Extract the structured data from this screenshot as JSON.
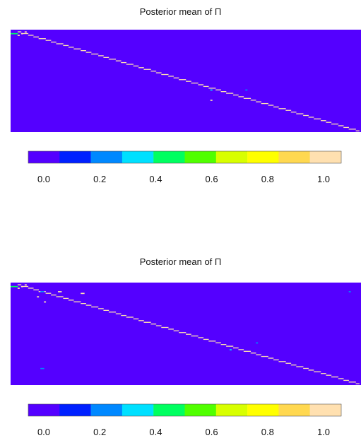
{
  "chart_data": [
    {
      "type": "heatmap",
      "title": "Posterior mean of Π",
      "colorbar": {
        "ticks": [
          "0.0",
          "0.2",
          "0.4",
          "0.6",
          "0.8",
          "1.0"
        ],
        "range": [
          0,
          1
        ],
        "colors": [
          "#5400FF",
          "#0020FF",
          "#0088FF",
          "#00E0FF",
          "#00FF60",
          "#50FF00",
          "#D8FF00",
          "#FFFF00",
          "#FFD850",
          "#FFE0B0"
        ]
      },
      "matrix": {
        "rows": 60,
        "cols": 200,
        "background_value": 0.0,
        "diagonal": {
          "from": [
            1,
            4
          ],
          "to": [
            59,
            198
          ],
          "value": 1.0
        },
        "cells": [
          {
            "row": 2,
            "col": 0,
            "value": 0.45
          },
          {
            "row": 2,
            "col": 1,
            "value": 0.45
          },
          {
            "row": 2,
            "col": 2,
            "value": 0.45
          },
          {
            "row": 2,
            "col": 3,
            "value": 0.45
          },
          {
            "row": 1,
            "col": 8,
            "value": 1.0
          },
          {
            "row": 2,
            "col": 6,
            "value": 1.0
          },
          {
            "row": 3,
            "col": 4,
            "value": 1.0
          },
          {
            "row": 35,
            "col": 114,
            "value": 0.35
          },
          {
            "row": 35,
            "col": 134,
            "value": 0.25
          },
          {
            "row": 41,
            "col": 114,
            "value": 0.95
          },
          {
            "row": 30,
            "col": 65,
            "value": 0.1
          },
          {
            "row": 47,
            "col": 94,
            "value": 0.1
          },
          {
            "row": 57,
            "col": 113,
            "value": 0.1
          },
          {
            "row": 54,
            "col": 174,
            "value": 0.1
          },
          {
            "row": 48,
            "col": 5,
            "value": 0.1
          },
          {
            "row": 19,
            "col": 129,
            "value": 0.1
          }
        ]
      }
    },
    {
      "type": "heatmap",
      "title": "Posterior mean of Π",
      "colorbar": {
        "ticks": [
          "0.0",
          "0.2",
          "0.4",
          "0.6",
          "0.8",
          "1.0"
        ],
        "range": [
          0,
          1
        ],
        "colors": [
          "#5400FF",
          "#0020FF",
          "#0088FF",
          "#00E0FF",
          "#00FF60",
          "#50FF00",
          "#D8FF00",
          "#FFFF00",
          "#FFD850",
          "#FFE0B0"
        ]
      },
      "matrix": {
        "rows": 60,
        "cols": 200,
        "background_value": 0.0,
        "diagonal": {
          "from": [
            1,
            4
          ],
          "to": [
            59,
            198
          ],
          "value": 1.0
        },
        "cells": [
          {
            "row": 2,
            "col": 0,
            "value": 0.45
          },
          {
            "row": 2,
            "col": 1,
            "value": 0.45
          },
          {
            "row": 2,
            "col": 2,
            "value": 0.45
          },
          {
            "row": 2,
            "col": 3,
            "value": 0.45
          },
          {
            "row": 1,
            "col": 8,
            "value": 1.0
          },
          {
            "row": 2,
            "col": 6,
            "value": 1.0
          },
          {
            "row": 3,
            "col": 4,
            "value": 1.0
          },
          {
            "row": 5,
            "col": 27,
            "value": 1.0
          },
          {
            "row": 5,
            "col": 28,
            "value": 1.0
          },
          {
            "row": 6,
            "col": 40,
            "value": 1.0
          },
          {
            "row": 6,
            "col": 41,
            "value": 1.0
          },
          {
            "row": 8,
            "col": 15,
            "value": 0.95
          },
          {
            "row": 11,
            "col": 19,
            "value": 0.95
          },
          {
            "row": 5,
            "col": 17,
            "value": 0.3
          },
          {
            "row": 5,
            "col": 18,
            "value": 0.3
          },
          {
            "row": 5,
            "col": 193,
            "value": 0.25
          },
          {
            "row": 50,
            "col": 17,
            "value": 0.3
          },
          {
            "row": 50,
            "col": 18,
            "value": 0.3
          },
          {
            "row": 39,
            "col": 125,
            "value": 0.35
          },
          {
            "row": 35,
            "col": 140,
            "value": 0.25
          }
        ]
      }
    }
  ]
}
